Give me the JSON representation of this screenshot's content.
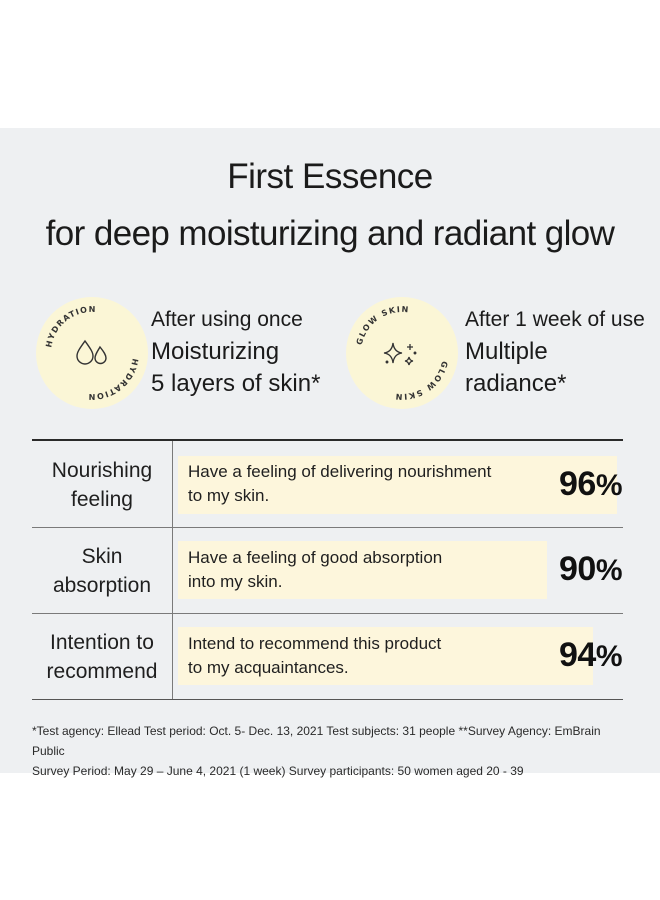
{
  "title": {
    "line1": "First Essence",
    "line2": "for deep moisturizing and radiant glow"
  },
  "badges": [
    {
      "ring_text": "HYDRATION",
      "icon": "water-drops-icon",
      "sub": "After using once",
      "main_line1": "Moisturizing",
      "main_line2": "5 layers of skin*"
    },
    {
      "ring_text": "GLOW SKIN",
      "icon": "sparkle-icon",
      "sub": "After 1 week of use",
      "main_line1": "Multiple",
      "main_line2": "radiance*"
    }
  ],
  "rows": [
    {
      "label_line1": "Nourishing",
      "label_line2": "feeling",
      "text_line1": "Have a feeling of delivering nourishment",
      "text_line2": "to my skin.",
      "percent": "96",
      "sign": "%",
      "value": 0.96
    },
    {
      "label_line1": "Skin",
      "label_line2": "absorption",
      "text_line1": "Have a feeling of good absorption",
      "text_line2": "into my skin.",
      "percent": "90",
      "sign": "%",
      "value": 0.9
    },
    {
      "label_line1": "Intention to",
      "label_line2": "recommend",
      "text_line1": "Intend to recommend this product",
      "text_line2": "to my acquaintances.",
      "percent": "94",
      "sign": "%",
      "value": 0.94
    }
  ],
  "footnote": {
    "line1": "*Test agency: Ellead  Test period: Oct. 5- Dec. 13, 2021  Test subjects: 31 people **Survey Agency: EmBrain Public",
    "line2": "Survey Period: May 29 – June 4, 2021 (1 week)  Survey participants: 50 women aged 20 - 39"
  },
  "colors": {
    "panel": "#eef0f2",
    "badge": "#fbf6d6",
    "bar": "#fdf6dc",
    "text": "#1b1b1b"
  }
}
